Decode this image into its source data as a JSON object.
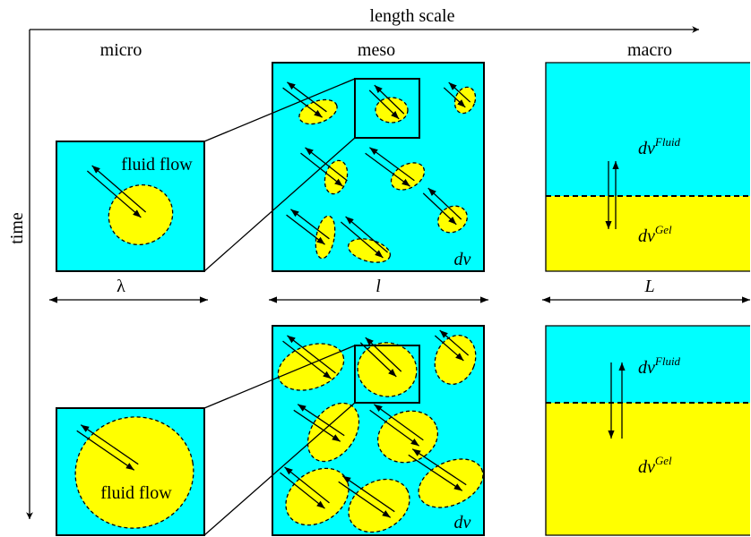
{
  "axes": {
    "horizontal": "length scale",
    "vertical": "time"
  },
  "columns": [
    "micro",
    "meso",
    "macro"
  ],
  "scales": [
    "λ",
    "l",
    "L"
  ],
  "rows": [
    {
      "micro": "fluid flow",
      "meso": "dv",
      "fluid": {
        "base": "dv",
        "sup": "Fluid"
      },
      "gel": {
        "base": "dv",
        "sup": "Gel"
      }
    },
    {
      "micro": "fluid flow",
      "meso": "dv",
      "fluid": {
        "base": "dv",
        "sup": "Fluid"
      },
      "gel": {
        "base": "dv",
        "sup": "Gel"
      }
    }
  ]
}
